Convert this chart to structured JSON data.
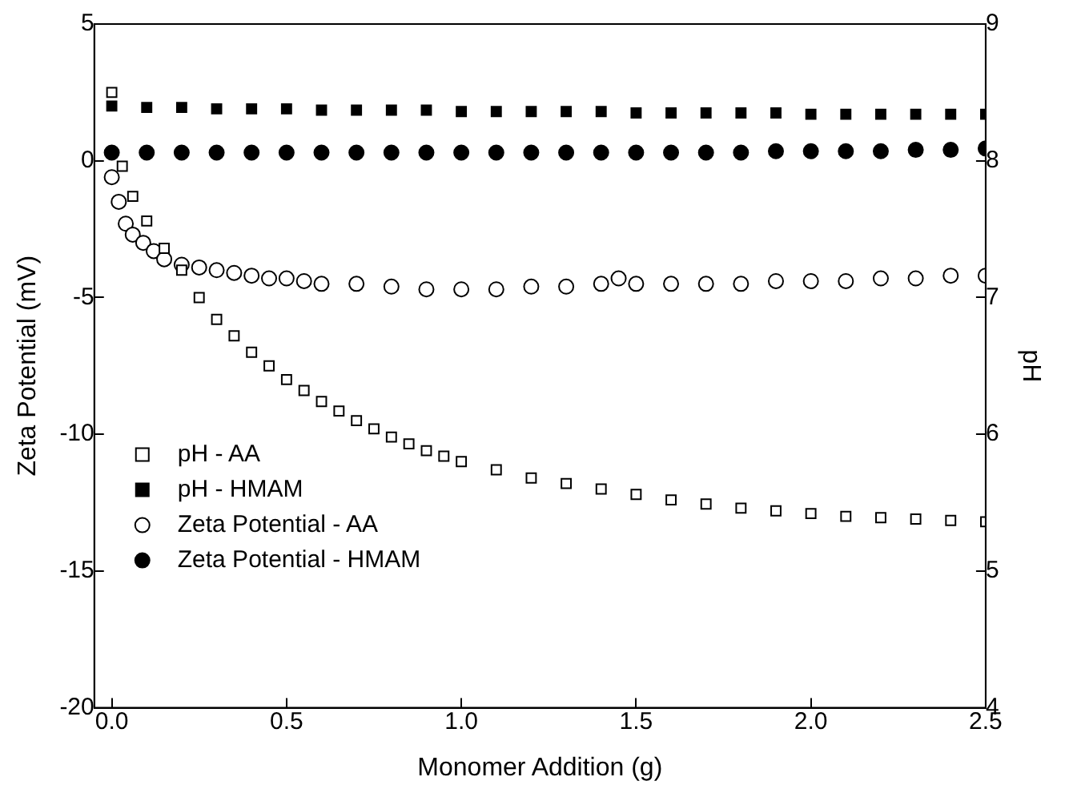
{
  "chart_data": {
    "type": "scatter",
    "xlabel": "Monomer Addition (g)",
    "ylabel": "Zeta Potential (mV)",
    "y2label": "pH",
    "xlim": [
      -0.05,
      2.5
    ],
    "xticks": [
      {
        "value": 0,
        "label": "0.0"
      },
      0.5,
      {
        "value": 1,
        "label": "1.0"
      },
      1.5,
      {
        "value": 2,
        "label": "2.0"
      },
      2.5
    ],
    "ylim": [
      -20,
      5
    ],
    "yticks": [
      -20,
      -15,
      -10,
      -5,
      0,
      5
    ],
    "y2lim": [
      4,
      9
    ],
    "y2ticks": [
      4,
      5,
      6,
      7,
      8,
      9
    ],
    "grid": false,
    "legend": "bottom left",
    "series": [
      {
        "name": "pH - AA",
        "color": "#ffffff",
        "marker": "square",
        "axis": "y2",
        "x": [
          0,
          0.03,
          0.06,
          0.1,
          0.15,
          0.2,
          0.25,
          0.3,
          0.35,
          0.4,
          0.45,
          0.5,
          0.55,
          0.6,
          0.65,
          0.7,
          0.75,
          0.8,
          0.85,
          0.9,
          0.95,
          1.0,
          1.1,
          1.2,
          1.3,
          1.4,
          1.5,
          1.6,
          1.7,
          1.8,
          1.9,
          2.0,
          2.1,
          2.2,
          2.3,
          2.4,
          2.5
        ],
        "values": [
          8.5,
          7.96,
          7.74,
          7.56,
          7.36,
          7.2,
          7.0,
          6.84,
          6.72,
          6.6,
          6.5,
          6.4,
          6.32,
          6.24,
          6.17,
          6.1,
          6.04,
          5.98,
          5.93,
          5.88,
          5.84,
          5.8,
          5.74,
          5.68,
          5.64,
          5.6,
          5.56,
          5.52,
          5.49,
          5.46,
          5.44,
          5.42,
          5.4,
          5.39,
          5.38,
          5.37,
          5.36
        ]
      },
      {
        "name": "pH - HMAM",
        "color": "#000000",
        "marker": "square",
        "axis": "y2",
        "x": [
          0,
          0.1,
          0.2,
          0.3,
          0.4,
          0.5,
          0.6,
          0.7,
          0.8,
          0.9,
          1.0,
          1.1,
          1.2,
          1.3,
          1.4,
          1.5,
          1.6,
          1.7,
          1.8,
          1.9,
          2.0,
          2.1,
          2.2,
          2.3,
          2.4,
          2.5
        ],
        "values": [
          8.4,
          8.39,
          8.39,
          8.38,
          8.38,
          8.38,
          8.37,
          8.37,
          8.37,
          8.37,
          8.36,
          8.36,
          8.36,
          8.36,
          8.36,
          8.35,
          8.35,
          8.35,
          8.35,
          8.35,
          8.34,
          8.34,
          8.34,
          8.34,
          8.34,
          8.34
        ]
      },
      {
        "name": "Zeta Potential - AA",
        "color": "#ffffff",
        "marker": "circle",
        "axis": "y",
        "x": [
          0,
          0.02,
          0.04,
          0.06,
          0.09,
          0.12,
          0.15,
          0.2,
          0.25,
          0.3,
          0.35,
          0.4,
          0.45,
          0.5,
          0.55,
          0.6,
          0.7,
          0.8,
          0.9,
          1.0,
          1.1,
          1.2,
          1.3,
          1.4,
          1.45,
          1.5,
          1.6,
          1.7,
          1.8,
          1.9,
          2.0,
          2.1,
          2.2,
          2.3,
          2.4,
          2.5
        ],
        "values": [
          -0.6,
          -1.5,
          -2.3,
          -2.7,
          -3.0,
          -3.3,
          -3.6,
          -3.8,
          -3.9,
          -4.0,
          -4.1,
          -4.2,
          -4.3,
          -4.3,
          -4.4,
          -4.5,
          -4.5,
          -4.6,
          -4.7,
          -4.7,
          -4.7,
          -4.6,
          -4.6,
          -4.5,
          -4.3,
          -4.5,
          -4.5,
          -4.5,
          -4.5,
          -4.4,
          -4.4,
          -4.4,
          -4.3,
          -4.3,
          -4.2,
          -4.2
        ]
      },
      {
        "name": "Zeta Potential - HMAM",
        "color": "#000000",
        "marker": "circle",
        "axis": "y",
        "x": [
          0,
          0.1,
          0.2,
          0.3,
          0.4,
          0.5,
          0.6,
          0.7,
          0.8,
          0.9,
          1.0,
          1.1,
          1.2,
          1.3,
          1.4,
          1.5,
          1.6,
          1.7,
          1.8,
          1.9,
          2.0,
          2.1,
          2.2,
          2.3,
          2.4,
          2.5
        ],
        "values": [
          0.3,
          0.3,
          0.3,
          0.3,
          0.3,
          0.3,
          0.3,
          0.3,
          0.3,
          0.3,
          0.3,
          0.3,
          0.3,
          0.3,
          0.3,
          0.3,
          0.3,
          0.3,
          0.3,
          0.35,
          0.35,
          0.35,
          0.35,
          0.4,
          0.4,
          0.45
        ]
      }
    ]
  }
}
